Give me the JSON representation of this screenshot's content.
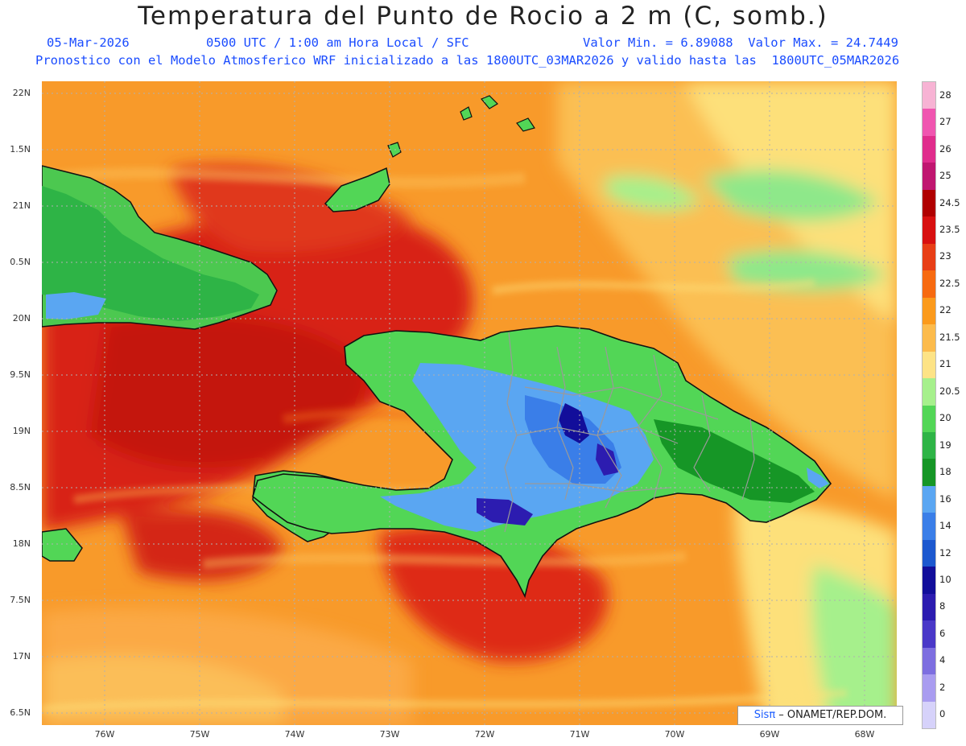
{
  "title": "Temperatura del Punto de Rocio a 2 m (C, somb.)",
  "info": {
    "date": "05-Mar-2026",
    "time": "0500 UTC / 1:00 am Hora Local / SFC",
    "min_max": "Valor Min. = 6.89088  Valor Max. = 24.7449",
    "forecast": "Pronostico con el Modelo Atmosferico WRF inicializado a las 1800UTC_03MAR2026 y valido hasta las  1800UTC_05MAR2026"
  },
  "axes": {
    "lat_labels": [
      "22N",
      "1.5N",
      "21N",
      "0.5N",
      "20N",
      "9.5N",
      "19N",
      "8.5N",
      "18N",
      "7.5N",
      "17N",
      "6.5N"
    ],
    "lon_labels": [
      "76W",
      "75W",
      "74W",
      "73W",
      "72W",
      "71W",
      "70W",
      "69W",
      "68W"
    ]
  },
  "colorbar": {
    "labels": [
      "28",
      "27",
      "26",
      "25",
      "24.5",
      "23.5",
      "23",
      "22.5",
      "22",
      "21.5",
      "21",
      "20.5",
      "20",
      "19",
      "18",
      "16",
      "14",
      "12",
      "10",
      "8",
      "6",
      "4",
      "2",
      "0"
    ],
    "colors": [
      "#f7b3d4",
      "#f055b0",
      "#e02c8c",
      "#c01670",
      "#b00000",
      "#d81010",
      "#e83e16",
      "#f76a10",
      "#fb9a1c",
      "#fcbb4c",
      "#fde386",
      "#a6f08c",
      "#52d656",
      "#2eb446",
      "#169626",
      "#5aa6f2",
      "#3a7ee8",
      "#1c58cf",
      "#120e9a",
      "#2c1cb0",
      "#4a38c8",
      "#7d6ee0",
      "#a99cf0",
      "#d6d2fa"
    ]
  },
  "credit": {
    "brand": "Sisπ",
    "org": " – ONAMET/REP.DOM."
  }
}
